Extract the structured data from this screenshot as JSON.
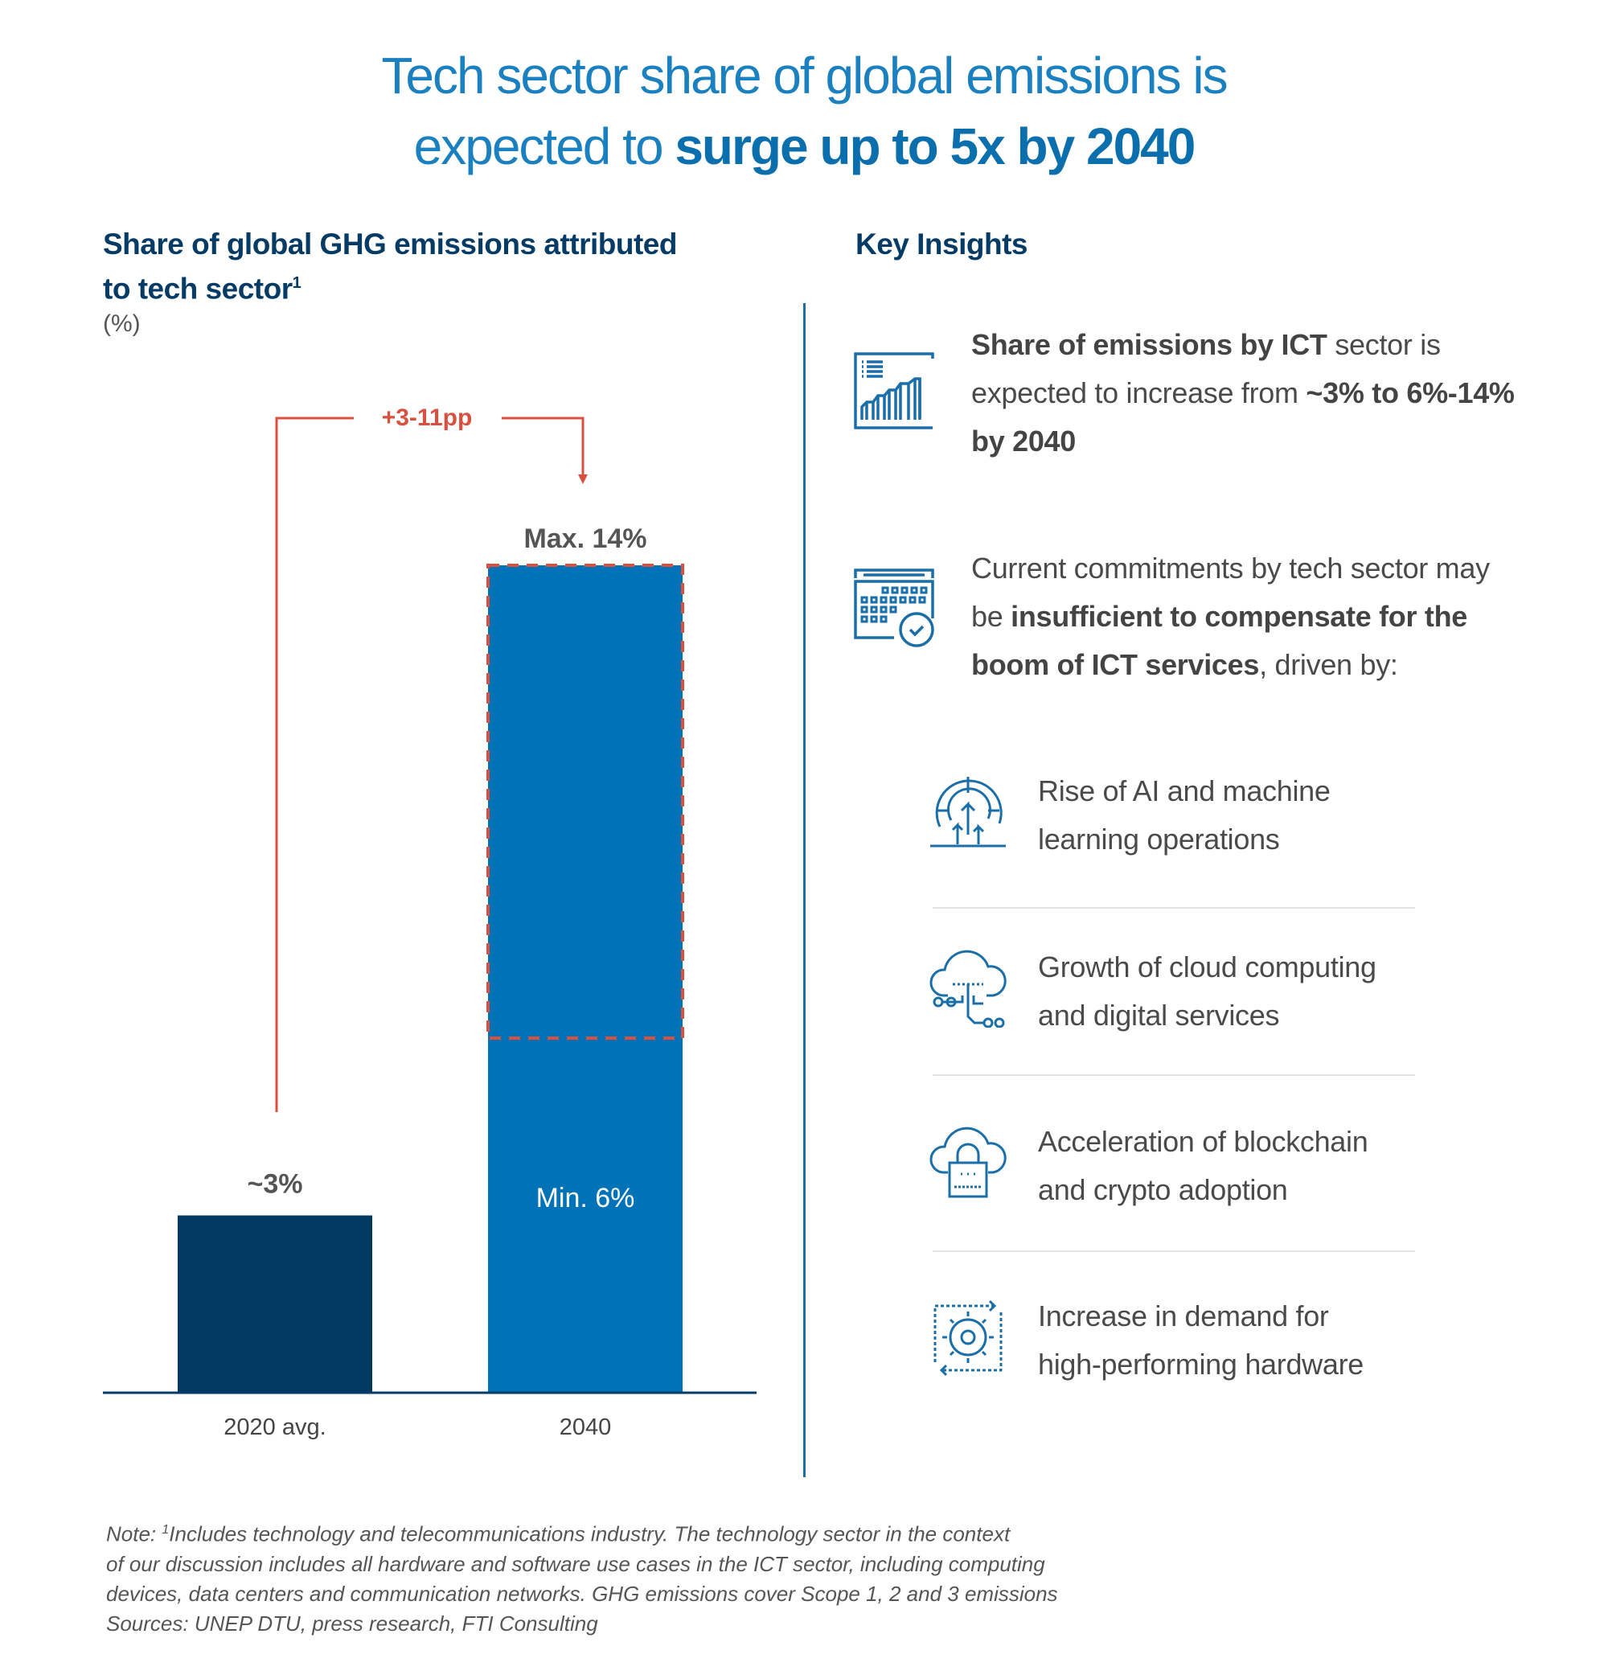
{
  "title": {
    "line1": "Tech sector share of global emissions is",
    "line2_prefix": "expected to ",
    "line2_bold": "surge up to 5x by 2040"
  },
  "chart": {
    "title_line1": "Share of global GHG emissions attributed",
    "title_line2": "to tech sector",
    "title_sup": "1",
    "unit": "(%)"
  },
  "chart_data": {
    "type": "bar",
    "categories": [
      "2020 avg.",
      "2040"
    ],
    "series": [
      {
        "values": [
          3,
          6
        ]
      },
      {
        "values": [
          null,
          14
        ]
      }
    ],
    "data_labels": [
      "~3%",
      "Min. 6%",
      "Max. 14%"
    ],
    "annotation": "+3-11pp",
    "ylabel": "(%)",
    "grid": false,
    "colors": {
      "2020": "#003a63",
      "2040": "#0072b8",
      "annotation": "#d9503f"
    }
  },
  "insights": {
    "heading": "Key Insights",
    "item1": {
      "icon": "chart-report-icon",
      "b1": "Share of emissions by ICT",
      "t1": " sector is expected to increase from ",
      "b2": "~3% to 6%-14% by 2040"
    },
    "item2": {
      "icon": "calendar-check-icon",
      "t1": "Current commitments by tech sector may be ",
      "b1": "insufficient to compensate for the boom of ICT services",
      "t2": ", driven by:"
    },
    "drivers": [
      {
        "icon": "ai-radar-icon",
        "line1": "Rise of AI and machine",
        "line2": "learning operations"
      },
      {
        "icon": "cloud-network-icon",
        "line1": "Growth of cloud computing",
        "line2": "and digital services"
      },
      {
        "icon": "cloud-lock-icon",
        "line1": "Acceleration of blockchain",
        "line2": "and crypto adoption"
      },
      {
        "icon": "gear-cycle-icon",
        "line1": "Increase in demand for",
        "line2": "high-performing hardware"
      }
    ]
  },
  "note": {
    "l1_prefix": "Note: ",
    "l1_sup": "1",
    "l1": "Includes technology and telecommunications industry. The technology sector in the context",
    "l2": "of our discussion includes all hardware and software use cases in the ICT sector, including computing",
    "l3": "devices, data centers and communication networks. GHG emissions cover Scope 1, 2 and 3 emissions",
    "l4": "Sources: UNEP DTU, press research, FTI Consulting"
  }
}
